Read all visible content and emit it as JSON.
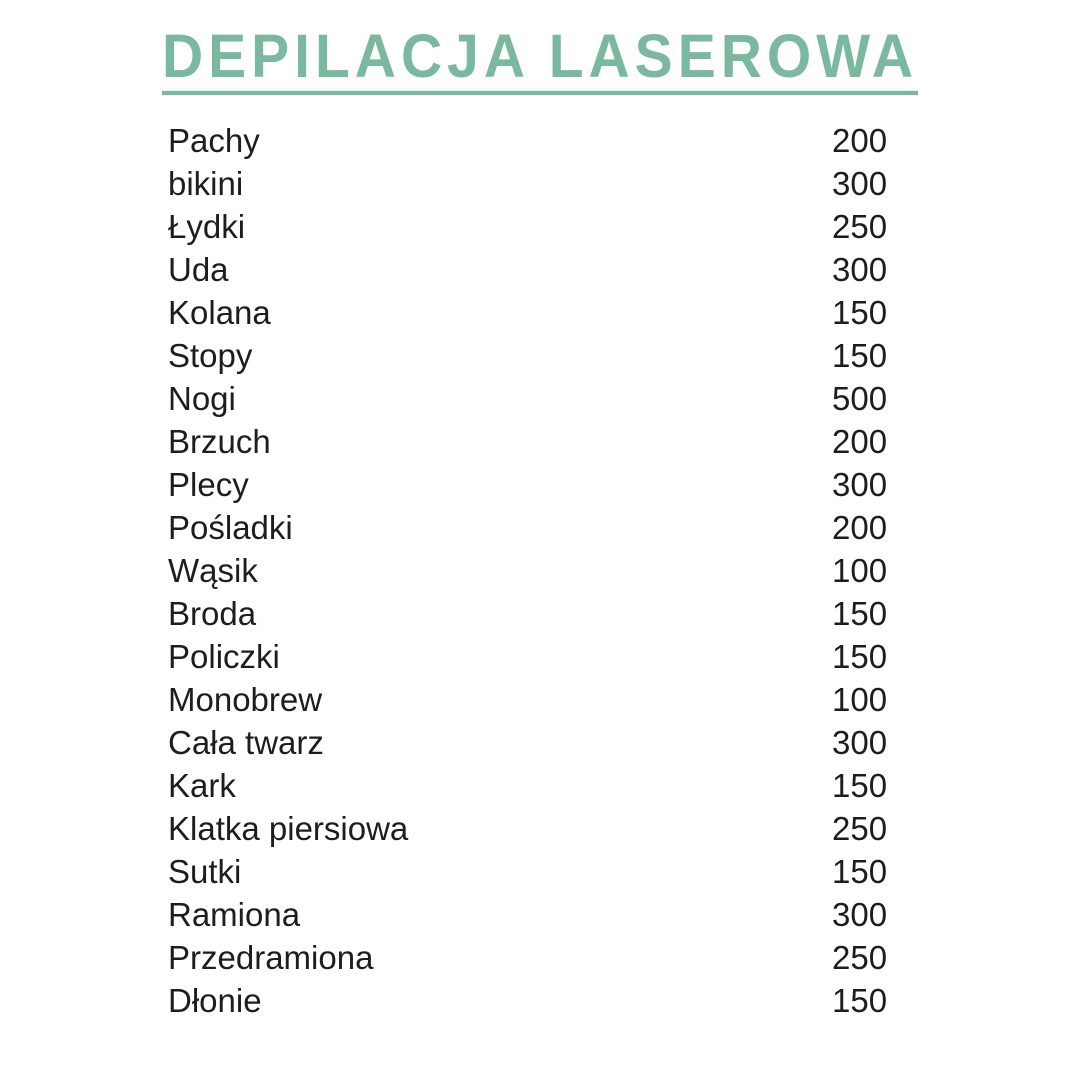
{
  "page": {
    "title": "DEPILACJA LASEROWA",
    "accent_color": "#7ab9a0",
    "text_color": "#1d1d1d",
    "background_color": "#ffffff"
  },
  "price_list": {
    "items": [
      {
        "label": "Pachy",
        "price": "200"
      },
      {
        "label": "bikini",
        "price": "300"
      },
      {
        "label": "Łydki",
        "price": "250"
      },
      {
        "label": "Uda",
        "price": "300"
      },
      {
        "label": "Kolana",
        "price": "150"
      },
      {
        "label": "Stopy",
        "price": "150"
      },
      {
        "label": "Nogi",
        "price": "500"
      },
      {
        "label": "Brzuch",
        "price": "200"
      },
      {
        "label": "Plecy",
        "price": "300"
      },
      {
        "label": "Pośladki",
        "price": "200"
      },
      {
        "label": "Wąsik",
        "price": "100"
      },
      {
        "label": "Broda",
        "price": "150"
      },
      {
        "label": "Policzki",
        "price": "150"
      },
      {
        "label": "Monobrew",
        "price": "100"
      },
      {
        "label": "Cała twarz",
        "price": "300"
      },
      {
        "label": "Kark",
        "price": "150"
      },
      {
        "label": "Klatka piersiowa",
        "price": "250"
      },
      {
        "label": "Sutki",
        "price": "150"
      },
      {
        "label": "Ramiona",
        "price": "300"
      },
      {
        "label": "Przedramiona",
        "price": "250"
      },
      {
        "label": "Dłonie",
        "price": "150"
      }
    ]
  }
}
